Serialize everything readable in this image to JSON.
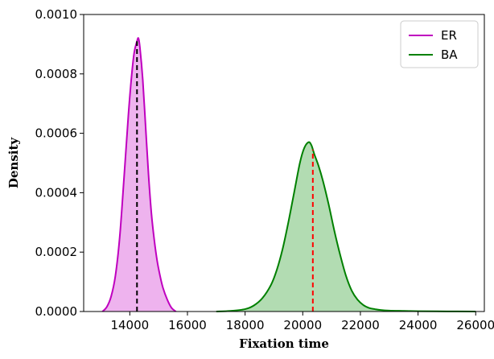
{
  "chart_data": {
    "type": "area",
    "xlabel": "Fixation time",
    "ylabel": "Density",
    "xlim": [
      12400,
      26300
    ],
    "ylim": [
      0,
      0.001
    ],
    "xticks": [
      "14000",
      "16000",
      "18000",
      "20000",
      "22000",
      "24000",
      "26000"
    ],
    "yticks": [
      "0.0000",
      "0.0002",
      "0.0004",
      "0.0006",
      "0.0008",
      "0.0010"
    ],
    "legend_position": "top-right",
    "grid": false,
    "series": [
      {
        "name": "ER",
        "color": "#bf00bf",
        "fill": "#eeb3ee",
        "mean": 14250,
        "x": [
          13050,
          13200,
          13350,
          13500,
          13650,
          13800,
          13950,
          14050,
          14150,
          14250,
          14300,
          14350,
          14450,
          14550,
          14650,
          14750,
          14850,
          14950,
          15050,
          15150,
          15300,
          15450,
          15600
        ],
        "y": [
          0.0,
          1.5e-05,
          5e-05,
          0.00012,
          0.00025,
          0.00045,
          0.00066,
          0.00078,
          0.00087,
          0.00091,
          0.00092,
          0.00089,
          0.00078,
          0.00062,
          0.00046,
          0.00033,
          0.00024,
          0.00017,
          0.00012,
          8e-05,
          4e-05,
          1.2e-05,
          0.0
        ]
      },
      {
        "name": "BA",
        "color": "#008000",
        "fill": "#b2dcb2",
        "mean": 20350,
        "x": [
          17000,
          17500,
          18000,
          18300,
          18600,
          18900,
          19100,
          19300,
          19500,
          19700,
          19900,
          20050,
          20200,
          20300,
          20400,
          20550,
          20700,
          20900,
          21100,
          21300,
          21500,
          21700,
          21900,
          22100,
          22300,
          22500,
          22700,
          23000,
          23500,
          24000,
          25000,
          26000
        ],
        "y": [
          0.0,
          2e-06,
          8e-06,
          2e-05,
          4.5e-05,
          9e-05,
          0.00014,
          0.00021,
          0.0003,
          0.0004,
          0.0005,
          0.00055,
          0.00057,
          0.00056,
          0.00053,
          0.00049,
          0.00044,
          0.00036,
          0.00027,
          0.00019,
          0.00012,
          7e-05,
          4e-05,
          2.2e-05,
          1.2e-05,
          8e-06,
          5e-06,
          3e-06,
          2e-06,
          1e-06,
          5e-07,
          0.0
        ]
      }
    ]
  }
}
